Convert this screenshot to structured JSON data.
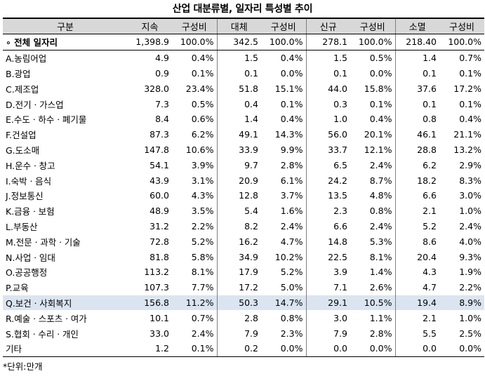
{
  "title": "산업 대분류별, 일자리 특성별 추이",
  "headers": [
    "구분",
    "지속",
    "구성비",
    "대체",
    "구성비",
    "신규",
    "구성비",
    "소멸",
    "구성비"
  ],
  "rows": [
    [
      "∘ 전체 일자리",
      "1,398.9",
      "100.0%",
      "342.5",
      "100.0%",
      "278.1",
      "100.0%",
      "218.40",
      "100.0%"
    ],
    [
      "A.농림어업",
      "4.9",
      "0.4%",
      "1.5",
      "0.4%",
      "1.5",
      "0.5%",
      "1.4",
      "0.7%"
    ],
    [
      "B.광업",
      "0.9",
      "0.1%",
      "0.1",
      "0.0%",
      "0.1",
      "0.0%",
      "0.1",
      "0.1%"
    ],
    [
      "C.제조업",
      "328.0",
      "23.4%",
      "51.8",
      "15.1%",
      "44.0",
      "15.8%",
      "37.6",
      "17.2%"
    ],
    [
      "D.전기ㆍ가스업",
      "7.3",
      "0.5%",
      "0.4",
      "0.1%",
      "0.3",
      "0.1%",
      "0.1",
      "0.1%"
    ],
    [
      "E.수도ㆍ하수ㆍ폐기물",
      "8.4",
      "0.6%",
      "1.4",
      "0.4%",
      "1.0",
      "0.4%",
      "0.8",
      "0.4%"
    ],
    [
      "F.건설업",
      "87.3",
      "6.2%",
      "49.1",
      "14.3%",
      "56.0",
      "20.1%",
      "46.1",
      "21.1%"
    ],
    [
      "G.도소매",
      "147.8",
      "10.6%",
      "33.9",
      "9.9%",
      "33.7",
      "12.1%",
      "28.8",
      "13.2%"
    ],
    [
      "H.운수ㆍ창고",
      "54.1",
      "3.9%",
      "9.7",
      "2.8%",
      "6.5",
      "2.4%",
      "6.2",
      "2.9%"
    ],
    [
      "I.숙박ㆍ음식",
      "43.9",
      "3.1%",
      "20.9",
      "6.1%",
      "24.2",
      "8.7%",
      "18.2",
      "8.3%"
    ],
    [
      "J.정보통신",
      "60.0",
      "4.3%",
      "12.8",
      "3.7%",
      "13.5",
      "4.8%",
      "6.6",
      "3.0%"
    ],
    [
      "K.금융ㆍ보험",
      "48.9",
      "3.5%",
      "5.4",
      "1.6%",
      "2.3",
      "0.8%",
      "2.1",
      "1.0%"
    ],
    [
      "L.부동산",
      "31.2",
      "2.2%",
      "8.2",
      "2.4%",
      "6.6",
      "2.4%",
      "5.2",
      "2.4%"
    ],
    [
      "M.전문ㆍ과학ㆍ기술",
      "72.8",
      "5.2%",
      "16.2",
      "4.7%",
      "14.8",
      "5.3%",
      "8.6",
      "4.0%"
    ],
    [
      "N.사업ㆍ임대",
      "81.8",
      "5.8%",
      "34.9",
      "10.2%",
      "22.5",
      "8.1%",
      "20.4",
      "9.3%"
    ],
    [
      "O.공공행정",
      "113.2",
      "8.1%",
      "17.9",
      "5.2%",
      "3.9",
      "1.4%",
      "4.3",
      "1.9%"
    ],
    [
      "P.교육",
      "107.3",
      "7.7%",
      "17.2",
      "5.0%",
      "7.1",
      "2.6%",
      "4.7",
      "2.2%"
    ],
    [
      "Q.보건ㆍ사회복지",
      "156.8",
      "11.2%",
      "50.3",
      "14.7%",
      "29.1",
      "10.5%",
      "19.4",
      "8.9%"
    ],
    [
      "R.예술ㆍ스포츠ㆍ여가",
      "10.1",
      "0.7%",
      "2.8",
      "0.8%",
      "3.0",
      "1.1%",
      "2.1",
      "1.0%"
    ],
    [
      "S.협회ㆍ수리ㆍ개인",
      "33.0",
      "2.4%",
      "7.9",
      "2.3%",
      "7.9",
      "2.8%",
      "5.5",
      "2.5%"
    ],
    [
      "기타",
      "1.2",
      "0.1%",
      "0.2",
      "0.0%",
      "0.0",
      "0.0%",
      "0.0",
      "0.0%"
    ]
  ],
  "highlight_row": 17,
  "highlight_color": "#dbe5f1",
  "header_color": "#d8d8d8",
  "note": "*단위:만개"
}
